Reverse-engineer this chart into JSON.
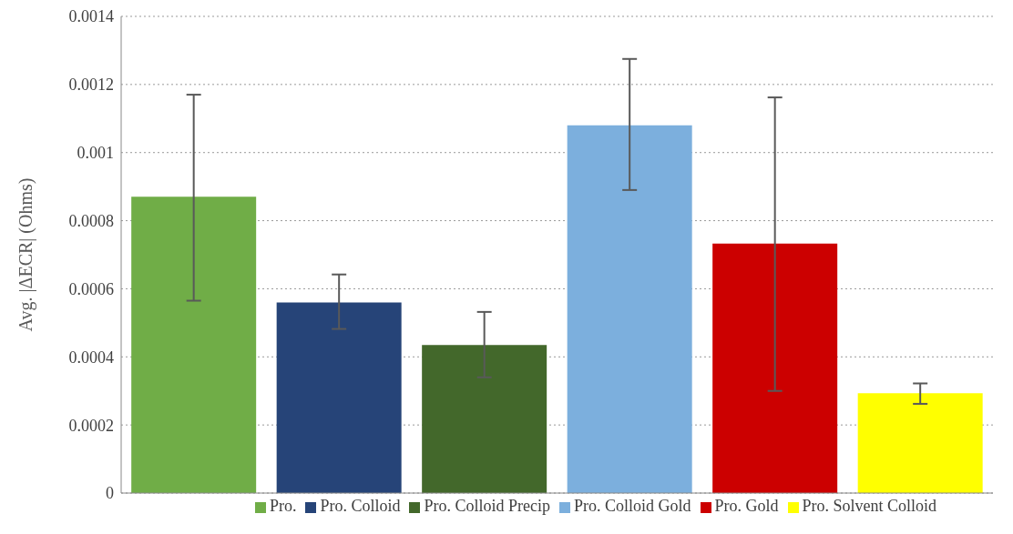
{
  "chart_data": {
    "type": "bar",
    "ylabel": "Avg. |ΔECR| (Ohms)",
    "categories": [
      null,
      null,
      null,
      null,
      null,
      null
    ],
    "stacked": true,
    "series": [
      {
        "name": "Pro.",
        "color": "#70ad47",
        "values": [
          0.00087,
          null,
          null,
          null,
          null,
          null
        ],
        "errors": [
          [
            0.000565,
            0.00117
          ],
          null,
          null,
          null,
          null,
          null
        ]
      },
      {
        "name": "Pro. Colloid",
        "color": "#264478",
        "values": [
          null,
          0.00056,
          null,
          null,
          null,
          null
        ],
        "errors": [
          null,
          [
            0.000482,
            0.000642
          ],
          null,
          null,
          null,
          null
        ]
      },
      {
        "name": "Pro. Colloid Precip",
        "color": "#43682b",
        "values": [
          null,
          null,
          0.000435,
          null,
          null,
          null
        ],
        "errors": [
          null,
          null,
          [
            0.00034,
            0.000532
          ],
          null,
          null,
          null
        ]
      },
      {
        "name": "Pro. Colloid Gold",
        "color": "#7cafdd",
        "values": [
          null,
          null,
          null,
          0.00108,
          null,
          null
        ],
        "errors": [
          null,
          null,
          null,
          [
            0.00089,
            0.001275
          ],
          null,
          null
        ]
      },
      {
        "name": "Pro. Gold",
        "color": "#cc0000",
        "values": [
          null,
          null,
          null,
          null,
          0.000733,
          null
        ],
        "errors": [
          null,
          null,
          null,
          null,
          [
            0.0003,
            0.001162
          ],
          null
        ]
      },
      {
        "name": "Pro. Solvent Colloid",
        "color": "#ffff00",
        "values": [
          null,
          null,
          null,
          null,
          null,
          0.000293
        ],
        "errors": [
          null,
          null,
          null,
          null,
          null,
          [
            0.000262,
            0.000322
          ]
        ]
      }
    ],
    "ylim": [
      0,
      0.0014
    ],
    "yticks": [
      0,
      0.0002,
      0.0004,
      0.0006,
      0.0008,
      0.001,
      0.0012,
      0.0014
    ],
    "grid": "y",
    "legend": "bottom",
    "tick_labels": "y"
  }
}
